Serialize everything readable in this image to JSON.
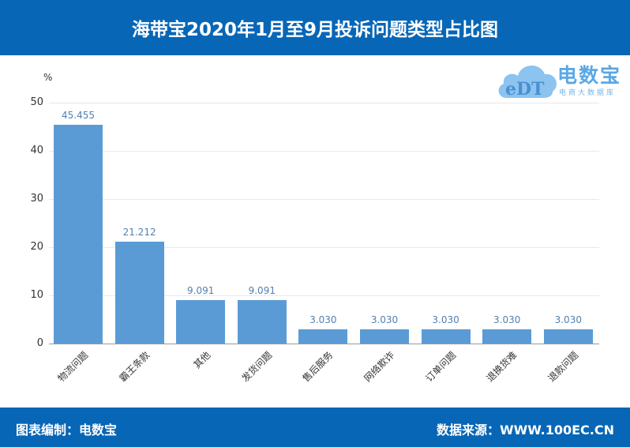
{
  "header": {
    "title": "海带宝2020年1月至9月投诉问题类型占比图"
  },
  "logo": {
    "brand": "电数宝",
    "subtitle": "电商大数据库",
    "mark": "eDT"
  },
  "footer": {
    "left": "图表编制：电数宝",
    "right": "数据来源：WWW.100EC.CN"
  },
  "colors": {
    "header": "#0866b6",
    "bar": "#5b9bd5",
    "value_label": "#5480b0"
  },
  "chart_data": {
    "type": "bar",
    "title": "海带宝2020年1月至9月投诉问题类型占比图",
    "xlabel": "",
    "ylabel": "%",
    "ylim": [
      0,
      50
    ],
    "yticks": [
      0,
      10,
      20,
      30,
      40,
      50
    ],
    "grid": true,
    "legend": "none",
    "categories": [
      "物流问题",
      "霸王条款",
      "其他",
      "发货问题",
      "售后服务",
      "网络欺诈",
      "订单问题",
      "退换货难",
      "退款问题"
    ],
    "values": [
      45.455,
      21.212,
      9.091,
      9.091,
      3.03,
      3.03,
      3.03,
      3.03,
      3.03
    ],
    "value_labels": [
      "45.455",
      "21.212",
      "9.091",
      "9.091",
      "3.030",
      "3.030",
      "3.030",
      "3.030",
      "3.030"
    ]
  }
}
